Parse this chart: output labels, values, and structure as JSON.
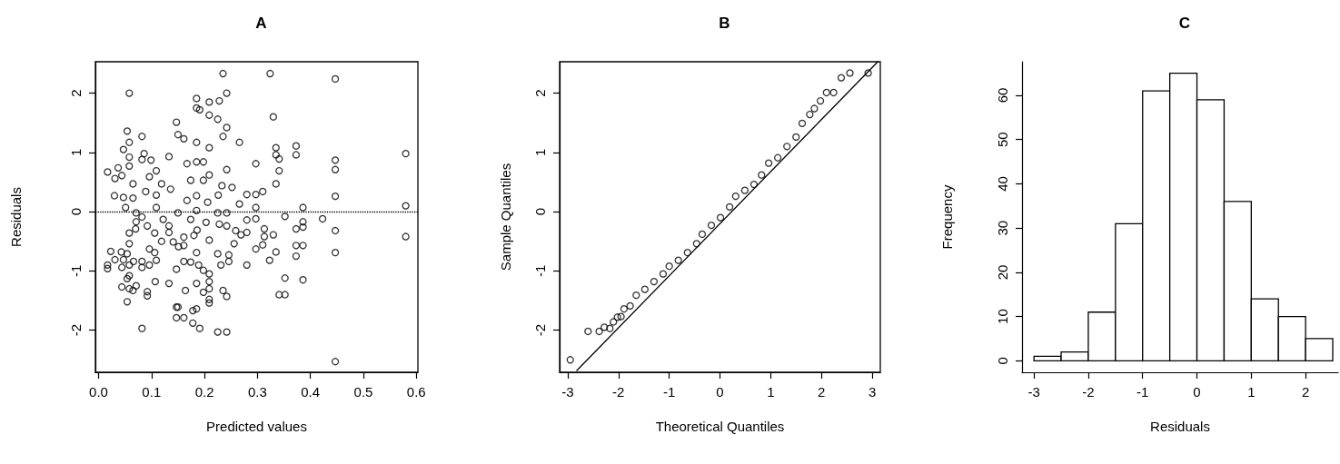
{
  "chart_data": [
    {
      "type": "scatter",
      "title": "A",
      "xlabel": "Predicted values",
      "ylabel": "Residuals",
      "color": "#000000",
      "marker": "circle",
      "grid": false,
      "x": [
        0.235,
        0.324,
        0.447,
        0.058,
        0.242,
        0.185,
        0.209,
        0.228,
        0.185,
        0.191,
        0.209,
        0.225,
        0.33,
        0.147,
        0.242,
        0.054,
        0.082,
        0.15,
        0.161,
        0.235,
        0.058,
        0.185,
        0.266,
        0.047,
        0.209,
        0.335,
        0.373,
        0.086,
        0.373,
        0.58,
        0.058,
        0.133,
        0.082,
        0.099,
        0.335,
        0.341,
        0.447,
        0.058,
        0.167,
        0.185,
        0.198,
        0.297,
        0.447,
        0.017,
        0.037,
        0.109,
        0.242,
        0.341,
        0.044,
        0.031,
        0.096,
        0.174,
        0.198,
        0.209,
        0.335,
        0.065,
        0.119,
        0.136,
        0.089,
        0.233,
        0.252,
        0.31,
        0.03,
        0.047,
        0.065,
        0.109,
        0.167,
        0.185,
        0.206,
        0.226,
        0.28,
        0.297,
        0.266,
        0.447,
        0.58,
        0.051,
        0.297,
        0.386,
        0.109,
        0.071,
        0.15,
        0.225,
        0.242,
        0.185,
        0.082,
        0.122,
        0.352,
        0.297,
        0.423,
        0.071,
        0.174,
        0.28,
        0.386,
        0.092,
        0.133,
        0.203,
        0.228,
        0.242,
        0.07,
        0.133,
        0.186,
        0.259,
        0.313,
        0.373,
        0.447,
        0.58,
        0.058,
        0.106,
        0.161,
        0.269,
        0.28,
        0.313,
        0.33,
        0.386,
        0.18,
        0.209,
        0.119,
        0.141,
        0.161,
        0.256,
        0.058,
        0.297,
        0.31,
        0.373,
        0.386,
        0.151,
        0.023,
        0.043,
        0.054,
        0.096,
        0.106,
        0.185,
        0.225,
        0.246,
        0.335,
        0.373,
        0.447,
        0.031,
        0.047,
        0.066,
        0.082,
        0.109,
        0.161,
        0.174,
        0.246,
        0.323,
        0.017,
        0.017,
        0.044,
        0.058,
        0.082,
        0.096,
        0.147,
        0.189,
        0.231,
        0.28,
        0.198,
        0.209,
        0.058,
        0.054,
        0.107,
        0.133,
        0.209,
        0.352,
        0.386,
        0.044,
        0.058,
        0.071,
        0.185,
        0.209,
        0.065,
        0.092,
        0.164,
        0.198,
        0.235,
        0.092,
        0.242,
        0.341,
        0.352,
        0.054,
        0.209,
        0.209,
        0.147,
        0.15,
        0.185,
        0.178,
        0.147,
        0.161,
        0.178,
        0.191,
        0.082,
        0.225,
        0.242,
        0.447
      ],
      "values": [
        2.33,
        2.33,
        2.24,
        2.0,
        2.0,
        1.91,
        1.85,
        1.87,
        1.75,
        1.72,
        1.63,
        1.56,
        1.6,
        1.51,
        1.42,
        1.36,
        1.27,
        1.3,
        1.23,
        1.27,
        1.17,
        1.17,
        1.17,
        1.05,
        1.08,
        1.08,
        1.11,
        0.98,
        0.96,
        0.98,
        0.92,
        0.93,
        0.88,
        0.87,
        0.96,
        0.89,
        0.87,
        0.77,
        0.81,
        0.84,
        0.84,
        0.81,
        0.71,
        0.67,
        0.74,
        0.69,
        0.71,
        0.69,
        0.61,
        0.56,
        0.59,
        0.53,
        0.53,
        0.62,
        0.47,
        0.47,
        0.47,
        0.38,
        0.34,
        0.44,
        0.41,
        0.34,
        0.27,
        0.24,
        0.23,
        0.28,
        0.19,
        0.27,
        0.16,
        0.28,
        0.29,
        0.29,
        0.13,
        0.26,
        0.1,
        0.07,
        0.07,
        0.07,
        0.07,
        -0.02,
        -0.02,
        -0.02,
        -0.02,
        0.02,
        -0.09,
        -0.13,
        -0.08,
        -0.12,
        -0.12,
        -0.17,
        -0.13,
        -0.14,
        -0.17,
        -0.24,
        -0.24,
        -0.18,
        -0.21,
        -0.24,
        -0.29,
        -0.35,
        -0.31,
        -0.32,
        -0.29,
        -0.29,
        -0.32,
        -0.42,
        -0.36,
        -0.36,
        -0.43,
        -0.39,
        -0.35,
        -0.42,
        -0.39,
        -0.26,
        -0.4,
        -0.48,
        -0.5,
        -0.51,
        -0.57,
        -0.54,
        -0.54,
        -0.63,
        -0.56,
        -0.57,
        -0.57,
        -0.59,
        -0.67,
        -0.68,
        -0.71,
        -0.63,
        -0.69,
        -0.69,
        -0.71,
        -0.73,
        -0.68,
        -0.75,
        -0.69,
        -0.81,
        -0.81,
        -0.84,
        -0.84,
        -0.82,
        -0.84,
        -0.85,
        -0.84,
        -0.82,
        -0.9,
        -0.96,
        -0.94,
        -0.9,
        -0.94,
        -0.9,
        -0.97,
        -0.9,
        -0.9,
        -0.9,
        -0.99,
        -1.05,
        -1.08,
        -1.13,
        -1.18,
        -1.21,
        -1.18,
        -1.12,
        -1.15,
        -1.27,
        -1.3,
        -1.25,
        -1.21,
        -1.3,
        -1.33,
        -1.35,
        -1.33,
        -1.36,
        -1.33,
        -1.42,
        -1.43,
        -1.4,
        -1.4,
        -1.52,
        -1.48,
        -1.54,
        -1.61,
        -1.61,
        -1.64,
        -1.67,
        -1.79,
        -1.79,
        -1.88,
        -1.97,
        -1.97,
        -2.03,
        -2.03,
        -2.53
      ],
      "xlim": [
        -0.006,
        0.603
      ],
      "ylim": [
        -2.71,
        2.53
      ],
      "xticks": [
        {
          "value": 0,
          "label": "0.0"
        },
        0.1,
        0.2,
        0.3,
        0.4,
        0.5,
        0.6
      ],
      "yticks": [
        -2,
        -1,
        0,
        1,
        2
      ],
      "ref_lines": [
        {
          "axis": "y",
          "value": 0,
          "color": "#000000",
          "line_style": "dotted"
        }
      ]
    },
    {
      "type": "scatter",
      "title": "B",
      "xlabel": "Theoretical Quantiles",
      "ylabel": "Sample Quantiles",
      "grid": false,
      "series": [
        {
          "type": "scatter",
          "color": "#000000",
          "marker": "circle",
          "x": [
            -2.95,
            -2.6,
            -2.38,
            -2.28,
            -2.17,
            -2.1,
            -2.02,
            -1.95,
            -1.89,
            -1.77,
            -1.65,
            -1.48,
            -1.3,
            -1.12,
            -1.0,
            -0.82,
            -0.64,
            -0.46,
            -0.35,
            -0.17,
            0.01,
            0.19,
            0.31,
            0.49,
            0.67,
            0.82,
            0.96,
            1.14,
            1.32,
            1.5,
            1.62,
            1.77,
            1.86,
            1.98,
            2.1,
            2.24,
            2.39,
            2.56,
            2.92
          ],
          "values": [
            -2.5,
            -2.02,
            -2.02,
            -1.95,
            -1.97,
            -1.86,
            -1.78,
            -1.77,
            -1.64,
            -1.59,
            -1.41,
            -1.31,
            -1.18,
            -1.05,
            -0.92,
            -0.82,
            -0.69,
            -0.54,
            -0.38,
            -0.23,
            -0.1,
            0.08,
            0.26,
            0.36,
            0.46,
            0.62,
            0.82,
            0.91,
            1.1,
            1.26,
            1.49,
            1.64,
            1.74,
            1.87,
            2.01,
            2.01,
            2.26,
            2.34,
            2.34
          ]
        },
        {
          "type": "line",
          "color": "#000000",
          "marker": "none",
          "line_style": "solid",
          "x": [
            -2.82,
            3.11
          ],
          "values": [
            -2.68,
            2.53
          ]
        }
      ],
      "xlim": [
        -3.16,
        3.16
      ],
      "ylim": [
        -2.71,
        2.53
      ],
      "xticks": [
        -3,
        -2,
        -1,
        0,
        1,
        2,
        3
      ],
      "yticks": [
        -2,
        -1,
        0,
        1,
        2
      ]
    },
    {
      "type": "histogram",
      "title": "C",
      "xlabel": "Residuals",
      "ylabel": "Frequency",
      "color": "#ffffff",
      "grid": false,
      "bins": [
        -3,
        -2.5,
        -2,
        -1.5,
        -1,
        -0.5,
        0,
        0.5,
        1,
        1.5,
        2,
        2.5
      ],
      "values": [
        1,
        2,
        11,
        31,
        61,
        65,
        59,
        36,
        14,
        10,
        5
      ],
      "xlim": [
        -3.22,
        2.6
      ],
      "ylim": [
        -2.6,
        67.6
      ],
      "xticks": [
        -3,
        -2,
        -1,
        0,
        1,
        2
      ],
      "yticks": [
        0,
        10,
        20,
        30,
        40,
        50,
        60
      ]
    }
  ]
}
